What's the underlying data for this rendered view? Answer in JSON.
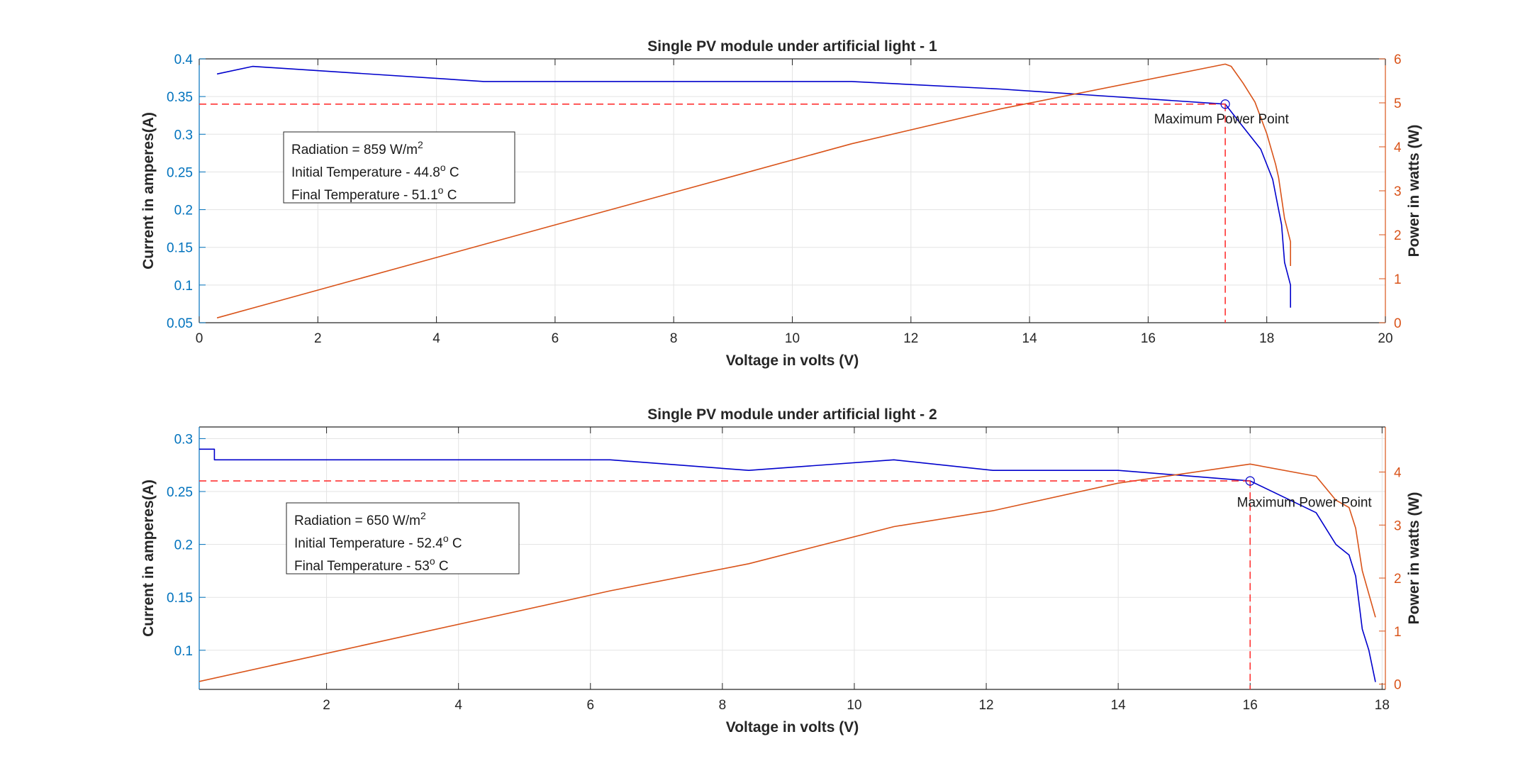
{
  "chart_data": [
    {
      "type": "line",
      "title": "Single PV module under artificial light - 1",
      "xlabel": "Voltage in volts (V)",
      "ylabel_left": "Current in amperes(A)",
      "ylabel_right": "Power in watts (W)",
      "xlim": [
        0,
        20
      ],
      "xticks": [
        0,
        2,
        4,
        6,
        8,
        10,
        12,
        14,
        16,
        18,
        20
      ],
      "ylim_left": [
        0.05,
        0.4
      ],
      "yticks_left": [
        0.05,
        0.1,
        0.15,
        0.2,
        0.25,
        0.3,
        0.35,
        0.4
      ],
      "ylim_right": [
        0,
        6
      ],
      "yticks_right": [
        0,
        1,
        2,
        3,
        4,
        5,
        6
      ],
      "grid": true,
      "series": [
        {
          "axis": "left",
          "color": "#0000CC",
          "x": [
            0.3,
            0.9,
            4.8,
            11.0,
            13.5,
            17.3,
            17.6,
            17.9,
            18.1,
            18.2,
            18.25,
            18.3,
            18.4,
            18.4
          ],
          "y": [
            0.38,
            0.39,
            0.37,
            0.37,
            0.36,
            0.34,
            0.31,
            0.28,
            0.24,
            0.2,
            0.18,
            0.13,
            0.1,
            0.07
          ]
        },
        {
          "axis": "right",
          "color": "#D95319",
          "x": [
            0.3,
            4.8,
            11.0,
            13.5,
            17.3,
            17.4,
            17.6,
            17.8,
            18.0,
            18.15,
            18.2,
            18.3,
            18.4,
            18.4
          ],
          "y": [
            0.11,
            1.78,
            4.07,
            4.86,
            5.88,
            5.83,
            5.45,
            5.02,
            4.3,
            3.6,
            3.3,
            2.37,
            1.84,
            1.29
          ]
        }
      ],
      "mpp": {
        "x": 17.3,
        "y": 0.34,
        "label": "Maximum Power Point",
        "label_x": 16.1,
        "label_y": 0.3145,
        "color": "#FF3333"
      },
      "info": {
        "radiation_prefix": "Radiation = 859 W/m",
        "radiation_sup": "2",
        "initial_prefix": "Initial Temperature - 44.8",
        "initial_sup": "o",
        "initial_suffix": " C",
        "final_prefix": "Final Temperature -  51.1",
        "final_sup": "o",
        "final_suffix": " C"
      }
    },
    {
      "type": "line",
      "title": "Single PV module under artificial light - 2",
      "xlabel": "Voltage in volts (V)",
      "ylabel_left": "Current in amperes(A)",
      "ylabel_right": "Power in watts (W)",
      "xlim": [
        0.07,
        18.05
      ],
      "xticks": [
        2,
        4,
        6,
        8,
        10,
        12,
        14,
        16,
        18
      ],
      "ylim_left": [
        0.063,
        0.311
      ],
      "yticks_left": [
        0.1,
        0.15,
        0.2,
        0.25,
        0.3
      ],
      "ylim_right": [
        -0.1,
        4.85
      ],
      "yticks_right": [
        0,
        1,
        2,
        3,
        4
      ],
      "grid": true,
      "series": [
        {
          "axis": "left",
          "color": "#0000CC",
          "x": [
            0.07,
            0.3,
            0.3,
            6.3,
            8.4,
            10.6,
            12.1,
            14.0,
            16.0,
            17.0,
            17.3,
            17.5,
            17.6,
            17.7,
            17.8,
            17.9
          ],
          "y": [
            0.29,
            0.29,
            0.28,
            0.28,
            0.27,
            0.28,
            0.27,
            0.27,
            0.26,
            0.23,
            0.2,
            0.19,
            0.17,
            0.12,
            0.1,
            0.07
          ]
        },
        {
          "axis": "right",
          "color": "#D95319",
          "x": [
            0.07,
            6.3,
            8.4,
            10.6,
            12.1,
            14.0,
            16.0,
            17.0,
            17.3,
            17.5,
            17.6,
            17.7,
            17.9
          ],
          "y": [
            0.05,
            1.76,
            2.27,
            2.97,
            3.27,
            3.79,
            4.15,
            3.92,
            3.47,
            3.33,
            2.94,
            2.14,
            1.26
          ]
        }
      ],
      "mpp": {
        "x": 16.0,
        "y": 0.26,
        "label": "Maximum Power Point",
        "label_x": 15.8,
        "label_y": 0.2355,
        "color": "#FF3333"
      },
      "info": {
        "radiation_prefix": "Radiation = 650 W/m",
        "radiation_sup": "2",
        "initial_prefix": "Initial Temperature - 52.4",
        "initial_sup": "o",
        "initial_suffix": " C",
        "final_prefix": "Final Temperature -  53",
        "final_sup": "o",
        "final_suffix": " C"
      }
    }
  ]
}
